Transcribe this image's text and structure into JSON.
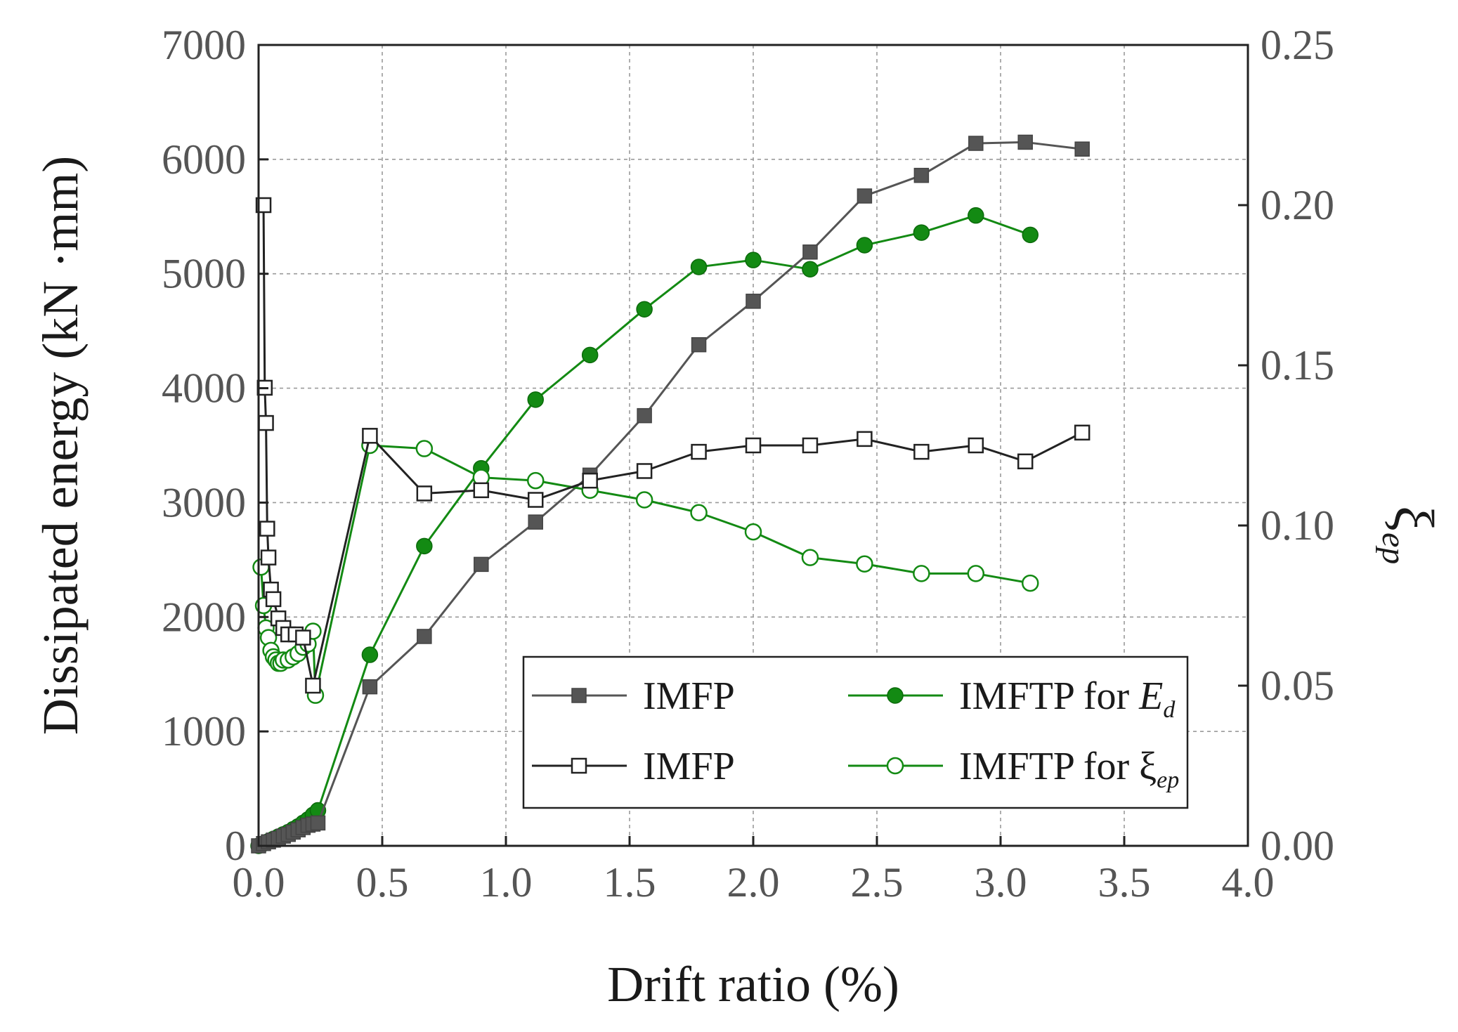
{
  "chart_data": {
    "type": "line",
    "xlabel": "Drift ratio (%)",
    "ylabel": "Dissipated energy (kN ·mm)",
    "y2label_symbol": "ξ",
    "y2label_sub": "ep",
    "xlim": [
      0.0,
      4.0
    ],
    "ylim": [
      0,
      7000
    ],
    "y2lim": [
      0.0,
      0.25
    ],
    "xticks": [
      "0.0",
      "0.5",
      "1.0",
      "1.5",
      "2.0",
      "2.5",
      "3.0",
      "3.5",
      "4.0"
    ],
    "yticks": [
      "0",
      "1000",
      "2000",
      "3000",
      "4000",
      "5000",
      "6000",
      "7000"
    ],
    "y2ticks": [
      "0.00",
      "0.05",
      "0.10",
      "0.15",
      "0.20",
      "0.25"
    ],
    "grid": true,
    "legend_position": "bottom-right",
    "series": [
      {
        "name": "IMFP",
        "legend_text": "IMFP",
        "axis": "left",
        "marker": "square-filled",
        "color": "#555555",
        "x": [
          0.0,
          0.02,
          0.04,
          0.06,
          0.08,
          0.1,
          0.12,
          0.14,
          0.16,
          0.18,
          0.2,
          0.22,
          0.24,
          0.45,
          0.67,
          0.9,
          1.12,
          1.34,
          1.56,
          1.78,
          2.0,
          2.23,
          2.45,
          2.68,
          2.9,
          3.1,
          3.33
        ],
        "y": [
          0,
          20,
          35,
          50,
          65,
          85,
          100,
          120,
          140,
          160,
          180,
          190,
          200,
          1390,
          1830,
          2460,
          2830,
          3240,
          3760,
          4380,
          4760,
          5190,
          5680,
          5860,
          6140,
          6150,
          6090
        ]
      },
      {
        "name": "IMFTP for Ed",
        "legend_text": "IMFTP for ",
        "legend_var": "E",
        "legend_sub": "d",
        "axis": "left",
        "marker": "circle-filled",
        "color": "#138a13",
        "x": [
          0.0,
          0.02,
          0.04,
          0.06,
          0.08,
          0.1,
          0.12,
          0.14,
          0.16,
          0.18,
          0.2,
          0.22,
          0.24,
          0.45,
          0.67,
          0.9,
          1.12,
          1.34,
          1.56,
          1.78,
          2.0,
          2.23,
          2.45,
          2.68,
          2.9,
          3.12
        ],
        "y": [
          0,
          20,
          40,
          60,
          80,
          100,
          120,
          145,
          170,
          200,
          230,
          270,
          310,
          1670,
          2620,
          3300,
          3900,
          4290,
          4690,
          5060,
          5120,
          5040,
          5250,
          5360,
          5510,
          5340
        ]
      },
      {
        "name": "IMFP",
        "legend_text": "IMFP",
        "axis": "right",
        "marker": "square-open",
        "color": "#222222",
        "x": [
          0.02,
          0.025,
          0.03,
          0.035,
          0.04,
          0.05,
          0.06,
          0.08,
          0.1,
          0.12,
          0.15,
          0.18,
          0.22,
          0.45,
          0.67,
          0.9,
          1.12,
          1.34,
          1.56,
          1.78,
          2.0,
          2.23,
          2.45,
          2.68,
          2.9,
          3.1,
          3.33
        ],
        "y": [
          0.2,
          0.143,
          0.132,
          0.099,
          0.09,
          0.08,
          0.077,
          0.071,
          0.068,
          0.066,
          0.066,
          0.065,
          0.05,
          0.128,
          0.11,
          0.111,
          0.108,
          0.114,
          0.117,
          0.123,
          0.125,
          0.125,
          0.127,
          0.123,
          0.125,
          0.12,
          0.129
        ]
      },
      {
        "name": "IMFTP for ξep",
        "legend_text": "IMFTP for ξ",
        "legend_sub": "ep",
        "axis": "right",
        "marker": "circle-open",
        "color": "#138a13",
        "x": [
          0.01,
          0.02,
          0.03,
          0.04,
          0.05,
          0.06,
          0.07,
          0.08,
          0.09,
          0.1,
          0.12,
          0.14,
          0.16,
          0.18,
          0.2,
          0.22,
          0.23,
          0.45,
          0.67,
          0.9,
          1.12,
          1.34,
          1.56,
          1.78,
          2.0,
          2.23,
          2.45,
          2.68,
          2.9,
          3.12
        ],
        "y": [
          0.087,
          0.075,
          0.068,
          0.065,
          0.061,
          0.059,
          0.058,
          0.057,
          0.057,
          0.058,
          0.058,
          0.059,
          0.06,
          0.062,
          0.063,
          0.067,
          0.047,
          0.125,
          0.124,
          0.115,
          0.114,
          0.111,
          0.108,
          0.104,
          0.098,
          0.09,
          0.088,
          0.085,
          0.085,
          0.082
        ]
      }
    ]
  }
}
